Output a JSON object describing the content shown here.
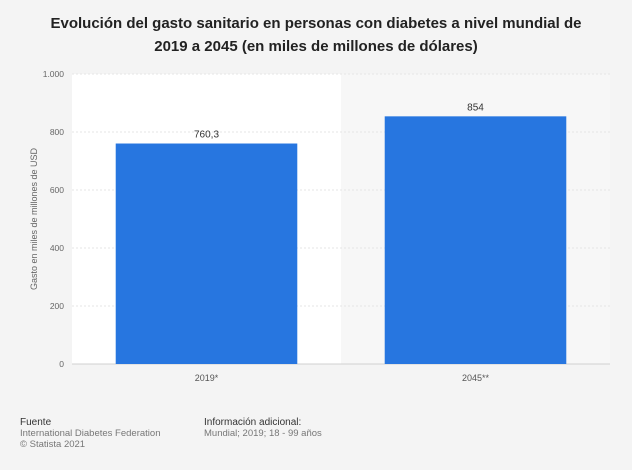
{
  "chart_data": {
    "type": "bar",
    "title": "Evolución del gasto sanitario en personas con diabetes a nivel mundial de 2019 a 2045 (en miles de millones de dólares)",
    "categories": [
      "2019*",
      "2045**"
    ],
    "values": [
      760.3,
      854
    ],
    "value_labels": [
      "760,3",
      "854"
    ],
    "ylabel": "Gasto en miles de millones de USD",
    "xlabel": "",
    "ylim": [
      0,
      1000
    ],
    "yticks": [
      0,
      200,
      400,
      600,
      800,
      1000
    ],
    "ytick_labels": [
      "0",
      "200",
      "400",
      "600",
      "800",
      "1.000"
    ],
    "grid": true,
    "bar_color": "#2776e0"
  },
  "footer": {
    "source_heading": "Fuente",
    "source_line1": "International Diabetes Federation",
    "source_line2": "© Statista 2021",
    "info_heading": "Información adicional:",
    "info_line1": "Mundial; 2019; 18 - 99 años"
  }
}
